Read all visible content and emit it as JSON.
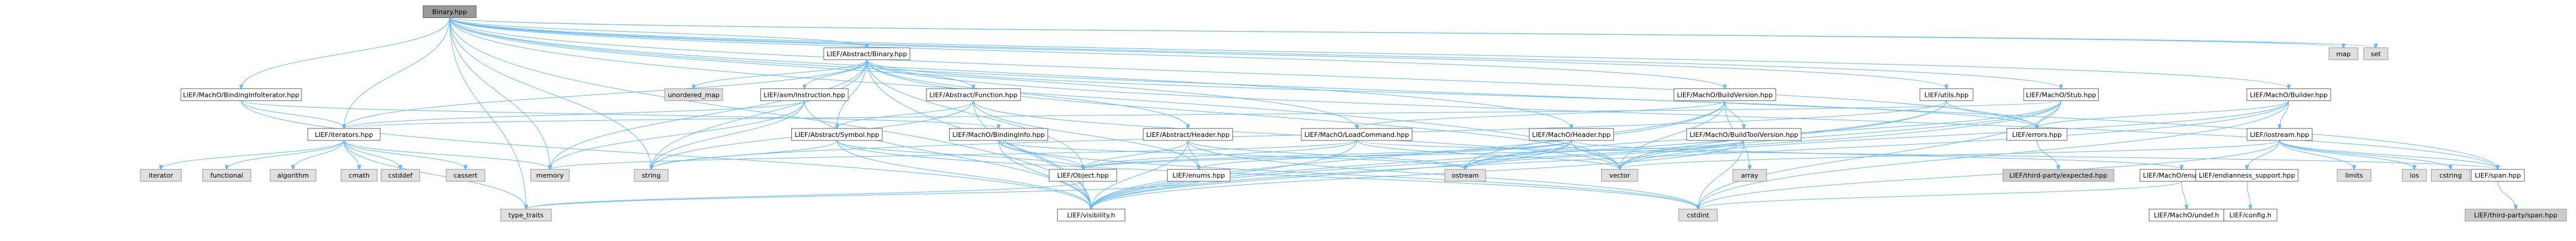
{
  "title": "Binary.hpp",
  "colors": {
    "edge": "#63b8ff",
    "root_fill": "#999999",
    "header_fill": "#ffffff",
    "system_fill": "#e0e0e0",
    "third_fill": "#cccccc"
  },
  "nodes": [
    {
      "id": "binary",
      "label": "Binary.hpp",
      "kind": "root"
    },
    {
      "id": "abs_binary",
      "label": "LIEF/Abstract/Binary.hpp",
      "kind": "header"
    },
    {
      "id": "map",
      "label": "map",
      "kind": "system"
    },
    {
      "id": "set",
      "label": "set",
      "kind": "system"
    },
    {
      "id": "unordered_map",
      "label": "unordered_map",
      "kind": "system"
    },
    {
      "id": "asm_instr",
      "label": "LIEF/asm/Instruction.hpp",
      "kind": "header"
    },
    {
      "id": "abs_function",
      "label": "LIEF/Abstract/Function.hpp",
      "kind": "header"
    },
    {
      "id": "build_version",
      "label": "LIEF/MachO/BuildVersion.hpp",
      "kind": "header"
    },
    {
      "id": "utils",
      "label": "LIEF/utils.hpp",
      "kind": "header"
    },
    {
      "id": "stub",
      "label": "LIEF/MachO/Stub.hpp",
      "kind": "header"
    },
    {
      "id": "builder",
      "label": "LIEF/MachO/Builder.hpp",
      "kind": "header"
    },
    {
      "id": "binding_iter",
      "label": "LIEF/MachO/BindingInfoIterator.hpp",
      "kind": "header"
    },
    {
      "id": "iterators",
      "label": "LIEF/iterators.hpp",
      "kind": "header"
    },
    {
      "id": "abs_symbol",
      "label": "LIEF/Abstract/Symbol.hpp",
      "kind": "header"
    },
    {
      "id": "binding_info",
      "label": "LIEF/MachO/BindingInfo.hpp",
      "kind": "header"
    },
    {
      "id": "abs_header",
      "label": "LIEF/Abstract/Header.hpp",
      "kind": "header"
    },
    {
      "id": "load_command",
      "label": "LIEF/MachO/LoadCommand.hpp",
      "kind": "header"
    },
    {
      "id": "macho_header",
      "label": "LIEF/MachO/Header.hpp",
      "kind": "header"
    },
    {
      "id": "build_tool",
      "label": "LIEF/MachO/BuildToolVersion.hpp",
      "kind": "header"
    },
    {
      "id": "errors",
      "label": "LIEF/errors.hpp",
      "kind": "header"
    },
    {
      "id": "iostream",
      "label": "LIEF/iostream.hpp",
      "kind": "header"
    },
    {
      "id": "iterator",
      "label": "iterator",
      "kind": "system"
    },
    {
      "id": "functional",
      "label": "functional",
      "kind": "system"
    },
    {
      "id": "algorithm",
      "label": "algorithm",
      "kind": "system"
    },
    {
      "id": "cmath",
      "label": "cmath",
      "kind": "system"
    },
    {
      "id": "cstddef",
      "label": "cstddef",
      "kind": "system"
    },
    {
      "id": "cassert",
      "label": "cassert",
      "kind": "system"
    },
    {
      "id": "memory",
      "label": "memory",
      "kind": "system"
    },
    {
      "id": "string",
      "label": "string",
      "kind": "system"
    },
    {
      "id": "object",
      "label": "LIEF/Object.hpp",
      "kind": "header"
    },
    {
      "id": "enums",
      "label": "LIEF/enums.hpp",
      "kind": "header"
    },
    {
      "id": "ostream",
      "label": "ostream",
      "kind": "system"
    },
    {
      "id": "vector",
      "label": "vector",
      "kind": "system"
    },
    {
      "id": "array",
      "label": "array",
      "kind": "system"
    },
    {
      "id": "expected",
      "label": "LIEF/third-party/expected.hpp",
      "kind": "third"
    },
    {
      "id": "macho_enums",
      "label": "LIEF/MachO/enums.hpp",
      "kind": "header"
    },
    {
      "id": "endianness",
      "label": "LIEF/endianness_support.hpp",
      "kind": "header"
    },
    {
      "id": "limits",
      "label": "limits",
      "kind": "system"
    },
    {
      "id": "ios",
      "label": "ios",
      "kind": "system"
    },
    {
      "id": "cstring",
      "label": "cstring",
      "kind": "system"
    },
    {
      "id": "span",
      "label": "LIEF/span.hpp",
      "kind": "header"
    },
    {
      "id": "type_traits",
      "label": "type_traits",
      "kind": "system"
    },
    {
      "id": "visibility",
      "label": "LIEF/visibility.h",
      "kind": "header"
    },
    {
      "id": "cstdint",
      "label": "cstdint",
      "kind": "system"
    },
    {
      "id": "undef",
      "label": "LIEF/MachO/undef.h",
      "kind": "header"
    },
    {
      "id": "config",
      "label": "LIEF/config.h",
      "kind": "header"
    },
    {
      "id": "tp_span",
      "label": "LIEF/third-party/span.hpp",
      "kind": "third"
    }
  ],
  "edges": [
    [
      "binary",
      "abs_binary"
    ],
    [
      "binary",
      "map"
    ],
    [
      "binary",
      "set"
    ],
    [
      "binary",
      "build_version"
    ],
    [
      "binary",
      "utils"
    ],
    [
      "binary",
      "stub"
    ],
    [
      "binary",
      "builder"
    ],
    [
      "binary",
      "binding_iter"
    ],
    [
      "binary",
      "iterators"
    ],
    [
      "binary",
      "load_command"
    ],
    [
      "binary",
      "macho_header"
    ],
    [
      "binary",
      "errors"
    ],
    [
      "binary",
      "span"
    ],
    [
      "binary",
      "type_traits"
    ],
    [
      "binary",
      "visibility"
    ],
    [
      "binary",
      "vector"
    ],
    [
      "binary",
      "memory"
    ],
    [
      "binary",
      "string"
    ],
    [
      "abs_binary",
      "unordered_map"
    ],
    [
      "abs_binary",
      "asm_instr"
    ],
    [
      "abs_binary",
      "abs_function"
    ],
    [
      "abs_binary",
      "iterators"
    ],
    [
      "abs_binary",
      "abs_header"
    ],
    [
      "abs_binary",
      "abs_symbol"
    ],
    [
      "abs_binary",
      "object"
    ],
    [
      "abs_binary",
      "memory"
    ],
    [
      "abs_binary",
      "vector"
    ],
    [
      "abs_binary",
      "errors"
    ],
    [
      "abs_binary",
      "span"
    ],
    [
      "abs_binary",
      "visibility"
    ],
    [
      "abs_binary",
      "string"
    ],
    [
      "asm_instr",
      "memory"
    ],
    [
      "asm_instr",
      "string"
    ],
    [
      "asm_instr",
      "iterators"
    ],
    [
      "asm_instr",
      "visibility"
    ],
    [
      "abs_function",
      "abs_symbol"
    ],
    [
      "abs_function",
      "enums"
    ],
    [
      "abs_function",
      "visibility"
    ],
    [
      "abs_function",
      "vector"
    ],
    [
      "abs_function",
      "string"
    ],
    [
      "build_version",
      "load_command"
    ],
    [
      "build_version",
      "build_tool"
    ],
    [
      "build_version",
      "visibility"
    ],
    [
      "build_version",
      "vector"
    ],
    [
      "build_version",
      "array"
    ],
    [
      "build_version",
      "ostream"
    ],
    [
      "utils",
      "errors"
    ],
    [
      "utils",
      "visibility"
    ],
    [
      "utils",
      "string"
    ],
    [
      "utils",
      "vector"
    ],
    [
      "stub",
      "errors"
    ],
    [
      "stub",
      "iterators"
    ],
    [
      "stub",
      "cstdint"
    ],
    [
      "stub",
      "ostream"
    ],
    [
      "stub",
      "visibility"
    ],
    [
      "stub",
      "vector"
    ],
    [
      "builder",
      "errors"
    ],
    [
      "builder",
      "iostream"
    ],
    [
      "builder",
      "vector"
    ],
    [
      "builder",
      "cstdint"
    ],
    [
      "builder",
      "visibility"
    ],
    [
      "binding_iter",
      "iterators"
    ],
    [
      "binding_iter",
      "binding_info"
    ],
    [
      "binding_iter",
      "visibility"
    ],
    [
      "iterators",
      "iterator"
    ],
    [
      "iterators",
      "functional"
    ],
    [
      "iterators",
      "algorithm"
    ],
    [
      "iterators",
      "cmath"
    ],
    [
      "iterators",
      "cstddef"
    ],
    [
      "iterators",
      "cassert"
    ],
    [
      "iterators",
      "memory"
    ],
    [
      "iterators",
      "type_traits"
    ],
    [
      "abs_symbol",
      "object"
    ],
    [
      "abs_symbol",
      "string"
    ],
    [
      "abs_symbol",
      "cstdint"
    ],
    [
      "abs_symbol",
      "visibility"
    ],
    [
      "binding_info",
      "object"
    ],
    [
      "binding_info",
      "visibility"
    ],
    [
      "binding_info",
      "cstdint"
    ],
    [
      "binding_info",
      "ostream"
    ],
    [
      "abs_header",
      "object"
    ],
    [
      "abs_header",
      "enums"
    ],
    [
      "abs_header",
      "visibility"
    ],
    [
      "abs_header",
      "ostream"
    ],
    [
      "abs_header",
      "cstdint"
    ],
    [
      "load_command",
      "object"
    ],
    [
      "load_command",
      "visibility"
    ],
    [
      "load_command",
      "vector"
    ],
    [
      "load_command",
      "memory"
    ],
    [
      "load_command",
      "span"
    ],
    [
      "macho_header",
      "object"
    ],
    [
      "macho_header",
      "enums"
    ],
    [
      "macho_header",
      "macho_enums"
    ],
    [
      "macho_header",
      "visibility"
    ],
    [
      "macho_header",
      "vector"
    ],
    [
      "macho_header",
      "ostream"
    ],
    [
      "build_tool",
      "object"
    ],
    [
      "build_tool",
      "visibility"
    ],
    [
      "build_tool",
      "ostream"
    ],
    [
      "build_tool",
      "cstdint"
    ],
    [
      "errors",
      "expected"
    ],
    [
      "iostream",
      "endianness"
    ],
    [
      "iostream",
      "span"
    ],
    [
      "iostream",
      "limits"
    ],
    [
      "iostream",
      "ios"
    ],
    [
      "iostream",
      "cstring"
    ],
    [
      "iostream",
      "vector"
    ],
    [
      "iostream",
      "cstdint"
    ],
    [
      "object",
      "type_traits"
    ],
    [
      "object",
      "visibility"
    ],
    [
      "enums",
      "type_traits"
    ],
    [
      "macho_enums",
      "undef"
    ],
    [
      "macho_enums",
      "cstdint"
    ],
    [
      "endianness",
      "config"
    ],
    [
      "span",
      "tp_span"
    ]
  ]
}
